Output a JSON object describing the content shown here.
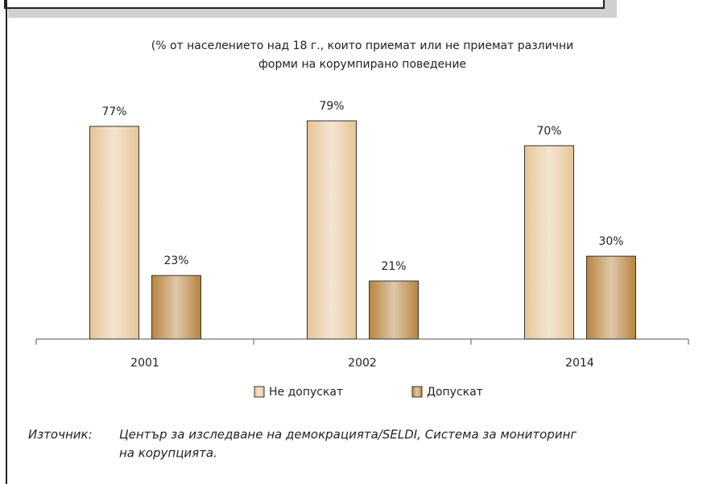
{
  "chart_data": {
    "type": "bar",
    "subtitle": [
      "(% от населението над 18 г., които приемат или не приемат различни",
      "форми на корумпирано поведение"
    ],
    "categories": [
      "2001",
      "2002",
      "2014"
    ],
    "series": [
      {
        "name": "Не допускат",
        "color": "#e6c596",
        "values": [
          77,
          79,
          70
        ],
        "value_labels": [
          "77%",
          "79%",
          "70%"
        ]
      },
      {
        "name": "Допускат",
        "color": "#b8843f",
        "values": [
          23,
          21,
          30
        ],
        "value_labels": [
          "23%",
          "21%",
          "30%"
        ]
      }
    ],
    "ylim": [
      0,
      100
    ],
    "source_label": "Източник:",
    "source": [
      "Център за изследване на демокрацията/SELDI, Система за мониторинг",
      "на корупцията."
    ]
  }
}
